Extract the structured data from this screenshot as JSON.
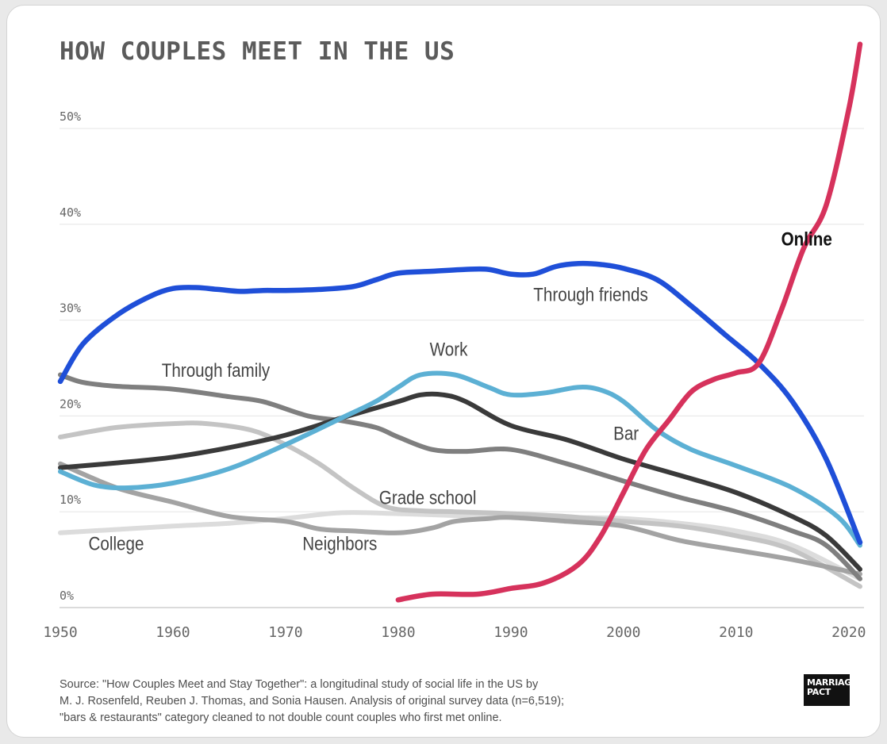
{
  "chart_data": {
    "type": "line",
    "title": "HOW COUPLES MEET IN THE US",
    "xlabel": "",
    "ylabel": "",
    "xlim": [
      1950,
      2021
    ],
    "ylim": [
      0,
      50
    ],
    "x_ticks": [
      1950,
      1960,
      1970,
      1980,
      1990,
      2000,
      2010,
      2020
    ],
    "y_ticks": [
      0,
      10,
      20,
      30,
      40,
      50
    ],
    "y_tick_labels": [
      "0%",
      "10%",
      "20%",
      "30%",
      "40%",
      "50%"
    ],
    "grid": "horizontal",
    "series": [
      {
        "name": "College",
        "color": "#dcdcdc",
        "width": 6,
        "label_x": 1952.5,
        "label_y": 6.0,
        "label_size": 24,
        "x": [
          1950,
          1960,
          1965,
          1970,
          1975,
          1980,
          1985,
          1990,
          1995,
          2000,
          2005,
          2010,
          2015,
          2021
        ],
        "y": [
          7.8,
          8.5,
          8.8,
          9.3,
          9.9,
          9.8,
          9.6,
          9.5,
          9.4,
          9.3,
          8.8,
          8.0,
          6.5,
          3.0
        ]
      },
      {
        "name": "Grade school",
        "color": "#c4c4c4",
        "width": 6,
        "label_x": 1978.3,
        "label_y": 10.8,
        "label_size": 24,
        "x": [
          1950,
          1955,
          1960,
          1963,
          1967,
          1970,
          1973,
          1976,
          1979,
          1982,
          1985,
          1990,
          1995,
          2000,
          2005,
          2010,
          2015,
          2021
        ],
        "y": [
          17.8,
          18.8,
          19.2,
          19.2,
          18.5,
          17.0,
          15.0,
          12.5,
          10.5,
          10.1,
          10.0,
          9.8,
          9.5,
          9.0,
          8.5,
          7.5,
          6.0,
          2.2
        ]
      },
      {
        "name": "Neighbors",
        "color": "#a3a3a3",
        "width": 6,
        "label_x": 1971.5,
        "label_y": 6.0,
        "label_size": 24,
        "x": [
          1950,
          1955,
          1960,
          1965,
          1970,
          1973,
          1976,
          1980,
          1983,
          1985,
          1988,
          1990,
          1995,
          2000,
          2005,
          2010,
          2015,
          2021
        ],
        "y": [
          15.0,
          12.5,
          11.0,
          9.5,
          9.0,
          8.2,
          8.0,
          7.8,
          8.3,
          9.0,
          9.3,
          9.4,
          9.0,
          8.5,
          7.0,
          6.0,
          5.0,
          3.5
        ]
      },
      {
        "name": "Through family",
        "color": "#7f7f7f",
        "width": 6,
        "label_x": 1959.0,
        "label_y": 24.1,
        "label_size": 24,
        "x": [
          1950,
          1952,
          1955,
          1960,
          1965,
          1968,
          1972,
          1975,
          1978,
          1980,
          1983,
          1986,
          1990,
          1995,
          2000,
          2005,
          2010,
          2015,
          2018,
          2021
        ],
        "y": [
          24.3,
          23.5,
          23.1,
          22.8,
          22.0,
          21.5,
          20.0,
          19.5,
          18.8,
          17.8,
          16.5,
          16.3,
          16.5,
          15.0,
          13.2,
          11.5,
          10.0,
          8.0,
          6.5,
          3.0
        ]
      },
      {
        "name": "Bar",
        "color": "#3a3a3a",
        "width": 6,
        "label_x": 1999.1,
        "label_y": 17.5,
        "label_size": 24,
        "x": [
          1950,
          1955,
          1960,
          1965,
          1970,
          1975,
          1980,
          1982,
          1984,
          1986,
          1990,
          1995,
          2000,
          2005,
          2010,
          2015,
          2018,
          2021
        ],
        "y": [
          14.6,
          15.1,
          15.7,
          16.7,
          18.0,
          19.8,
          21.5,
          22.2,
          22.2,
          21.5,
          19.0,
          17.5,
          15.5,
          13.8,
          12.0,
          9.5,
          7.5,
          4.0
        ]
      },
      {
        "name": "Work",
        "color": "#5cb0d4",
        "width": 6,
        "label_x": 1982.8,
        "label_y": 26.3,
        "label_size": 24,
        "x": [
          1950,
          1953,
          1956,
          1960,
          1965,
          1970,
          1975,
          1978,
          1980,
          1982,
          1985,
          1988,
          1990,
          1993,
          1996,
          1998,
          2000,
          2003,
          2006,
          2010,
          2015,
          2019,
          2021
        ],
        "y": [
          14.2,
          12.8,
          12.5,
          13.0,
          14.5,
          17.0,
          19.8,
          21.5,
          23.0,
          24.3,
          24.3,
          23.0,
          22.2,
          22.4,
          23.0,
          22.7,
          21.5,
          18.5,
          16.5,
          14.8,
          12.5,
          9.5,
          6.5
        ]
      },
      {
        "name": "Through friends",
        "color": "#1f4fd8",
        "width": 6.5,
        "label_x": 1992.0,
        "label_y": 32.0,
        "label_size": 24,
        "x": [
          1950,
          1952,
          1955,
          1958,
          1960,
          1962,
          1964,
          1966,
          1968,
          1970,
          1973,
          1976,
          1978,
          1980,
          1983,
          1986,
          1988,
          1990,
          1992,
          1994,
          1996,
          1998,
          2000,
          2003,
          2006,
          2009,
          2012,
          2015,
          2018,
          2021
        ],
        "y": [
          23.6,
          27.5,
          30.5,
          32.5,
          33.3,
          33.4,
          33.2,
          33.0,
          33.1,
          33.1,
          33.2,
          33.5,
          34.2,
          34.9,
          35.1,
          35.3,
          35.3,
          34.8,
          34.8,
          35.6,
          35.9,
          35.8,
          35.4,
          34.2,
          31.5,
          28.5,
          25.5,
          21.5,
          15.5,
          6.8
        ]
      },
      {
        "name": "Online",
        "color": "#d6325c",
        "width": 6.5,
        "label_x": 2014.0,
        "label_y": 37.8,
        "label_size": 24,
        "label_bold": true,
        "label_color": "#111111",
        "x": [
          1980,
          1983,
          1987,
          1990,
          1993,
          1996,
          1998,
          2000,
          2002,
          2004,
          2006,
          2008,
          2010,
          2012,
          2014,
          2016,
          2018,
          2020,
          2021
        ],
        "y": [
          0.8,
          1.4,
          1.4,
          2.0,
          2.6,
          4.5,
          7.5,
          12.0,
          16.5,
          19.5,
          22.5,
          23.8,
          24.5,
          25.5,
          31.0,
          37.5,
          42.0,
          52.0,
          58.8
        ]
      }
    ]
  },
  "source_lines": [
    "Source: \"How Couples Meet and Stay Together\": a longitudinal study of social life in the US by",
    "M. J. Rosenfeld, Reuben J. Thomas, and Sonia Hausen. Analysis of original survey data (n=6,519);",
    "\"bars & restaurants\" category cleaned to not double count couples who first met online."
  ],
  "logo": {
    "line1": "MARRIAGE",
    "line2": "PACT"
  },
  "colors": {
    "grid": "#e6e6e6",
    "axis": "#cfcfcf",
    "tick_label": "#666666",
    "series_label": "#444444"
  }
}
